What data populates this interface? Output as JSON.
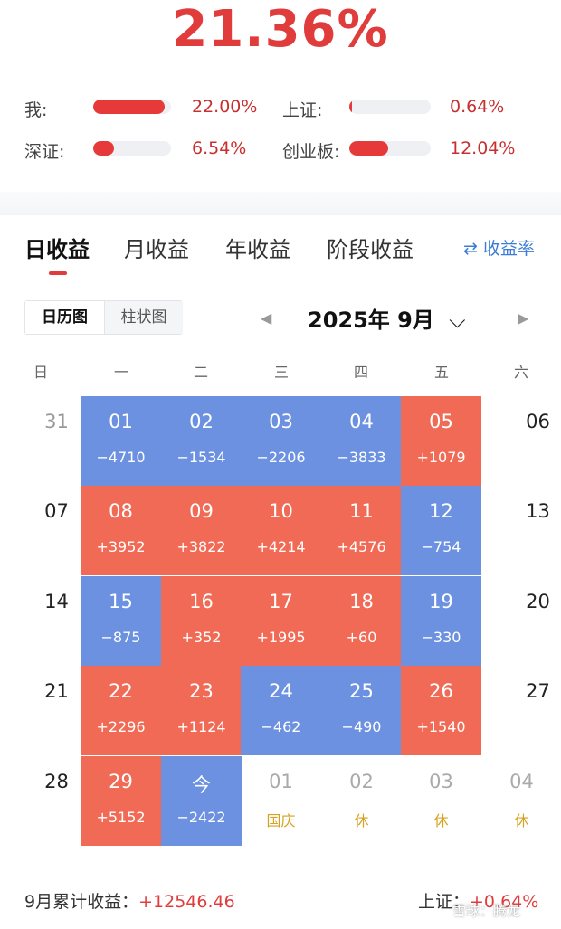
{
  "summary": {
    "total_pct": "21.36%"
  },
  "comparisons": [
    {
      "label": "我:",
      "value": "22.00%",
      "fill": 0.92
    },
    {
      "label": "上证:",
      "value": "0.64%",
      "fill": 0.02
    },
    {
      "label": "深证:",
      "value": "6.54%",
      "fill": 0.27
    },
    {
      "label": "创业板:",
      "value": "12.04%",
      "fill": 0.48
    }
  ],
  "tabs": [
    "日收益",
    "月收益",
    "年收益",
    "阶段收益"
  ],
  "active_tab": "日收益",
  "rate_link": "⇄ 收益率",
  "view_toggle": {
    "calendar": "日历图",
    "bar": "柱状图"
  },
  "month_nav": {
    "label": "2025年 9月",
    "prev": "◀",
    "next": "▶",
    "dropdown": "⌵"
  },
  "weekdays": [
    "日",
    "一",
    "二",
    "三",
    "四",
    "五",
    "六"
  ],
  "weeks": [
    [
      {
        "d": "31",
        "v": "",
        "t": "out"
      },
      {
        "d": "01",
        "v": "−4710",
        "t": "neg"
      },
      {
        "d": "02",
        "v": "−1534",
        "t": "neg"
      },
      {
        "d": "03",
        "v": "−2206",
        "t": "neg"
      },
      {
        "d": "04",
        "v": "−3833",
        "t": "neg"
      },
      {
        "d": "05",
        "v": "+1079",
        "t": "pos"
      },
      {
        "d": "06",
        "v": "",
        "t": "plain"
      }
    ],
    [
      {
        "d": "07",
        "v": "",
        "t": "plain"
      },
      {
        "d": "08",
        "v": "+3952",
        "t": "pos"
      },
      {
        "d": "09",
        "v": "+3822",
        "t": "pos"
      },
      {
        "d": "10",
        "v": "+4214",
        "t": "pos"
      },
      {
        "d": "11",
        "v": "+4576",
        "t": "pos"
      },
      {
        "d": "12",
        "v": "−754",
        "t": "neg"
      },
      {
        "d": "13",
        "v": "",
        "t": "plain"
      }
    ],
    [
      {
        "d": "14",
        "v": "",
        "t": "plain"
      },
      {
        "d": "15",
        "v": "−875",
        "t": "neg"
      },
      {
        "d": "16",
        "v": "+352",
        "t": "pos"
      },
      {
        "d": "17",
        "v": "+1995",
        "t": "pos"
      },
      {
        "d": "18",
        "v": "+60",
        "t": "pos"
      },
      {
        "d": "19",
        "v": "−330",
        "t": "neg"
      },
      {
        "d": "20",
        "v": "",
        "t": "plain"
      }
    ],
    [
      {
        "d": "21",
        "v": "",
        "t": "plain"
      },
      {
        "d": "22",
        "v": "+2296",
        "t": "pos"
      },
      {
        "d": "23",
        "v": "+1124",
        "t": "pos"
      },
      {
        "d": "24",
        "v": "−462",
        "t": "neg"
      },
      {
        "d": "25",
        "v": "−490",
        "t": "neg"
      },
      {
        "d": "26",
        "v": "+1540",
        "t": "pos"
      },
      {
        "d": "27",
        "v": "",
        "t": "plain"
      }
    ],
    [
      {
        "d": "28",
        "v": "",
        "t": "plain"
      },
      {
        "d": "29",
        "v": "+5152",
        "t": "pos"
      },
      {
        "d": "今",
        "v": "−2422",
        "t": "neg"
      },
      {
        "d": "01",
        "v": "国庆",
        "t": "future"
      },
      {
        "d": "02",
        "v": "休",
        "t": "future"
      },
      {
        "d": "03",
        "v": "休",
        "t": "future"
      },
      {
        "d": "04",
        "v": "休",
        "t": "future"
      }
    ]
  ],
  "footer": {
    "month_label": "9月累计收益：",
    "month_value": "+12546.46",
    "index_label": "上证：",
    "index_value": "+0.64%",
    "watermark": "雪球：腾龙"
  },
  "colors": {
    "positive": "#f06a55",
    "negative": "#6b91e0",
    "accent": "#e03c3c",
    "link": "#3b7cd6"
  }
}
